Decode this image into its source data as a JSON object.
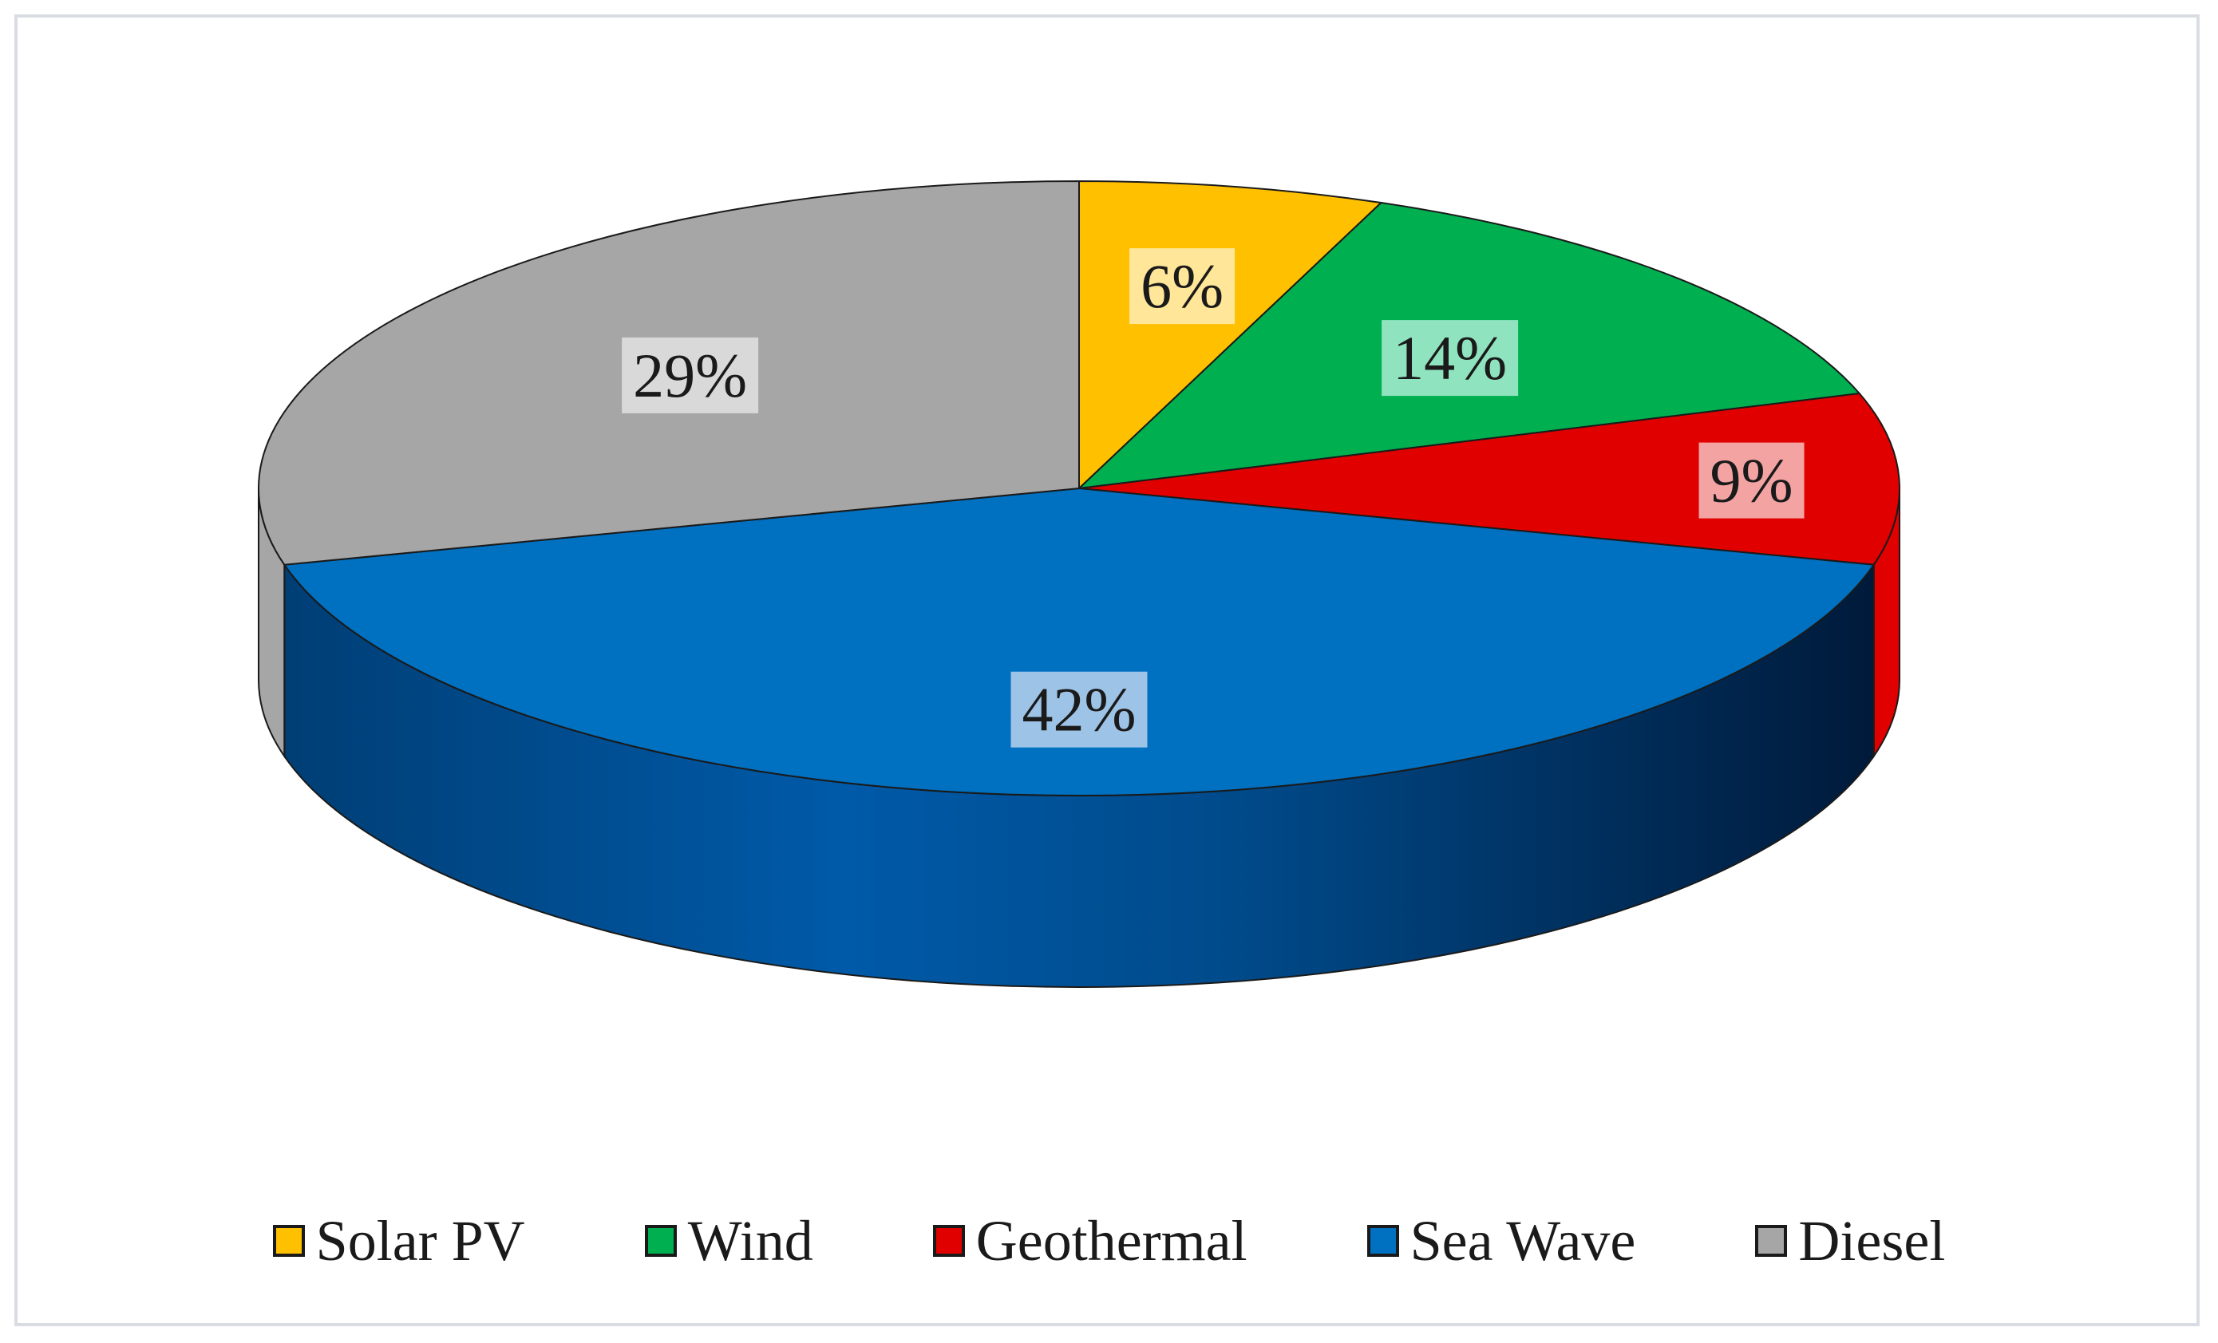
{
  "chart_data": {
    "type": "pie",
    "style": "3d",
    "slices": [
      {
        "name": "Solar PV",
        "value": 6,
        "label": "6%",
        "color": "#FFC000",
        "label_bg": "#FFE699"
      },
      {
        "name": "Wind",
        "value": 14,
        "label": "14%",
        "color": "#00B050",
        "label_bg": "#8FE3BE"
      },
      {
        "name": "Geothermal",
        "value": 9,
        "label": "9%",
        "color": "#E00000",
        "label_bg": "#F4A3A3"
      },
      {
        "name": "Sea Wave",
        "value": 42,
        "label": "42%",
        "color": "#0070C0",
        "label_bg": "#9DC3E6"
      },
      {
        "name": "Diesel",
        "value": 29,
        "label": "29%",
        "color": "#A6A6A6",
        "label_bg": "#D9D9D9"
      }
    ],
    "legend_position": "bottom",
    "title": ""
  }
}
